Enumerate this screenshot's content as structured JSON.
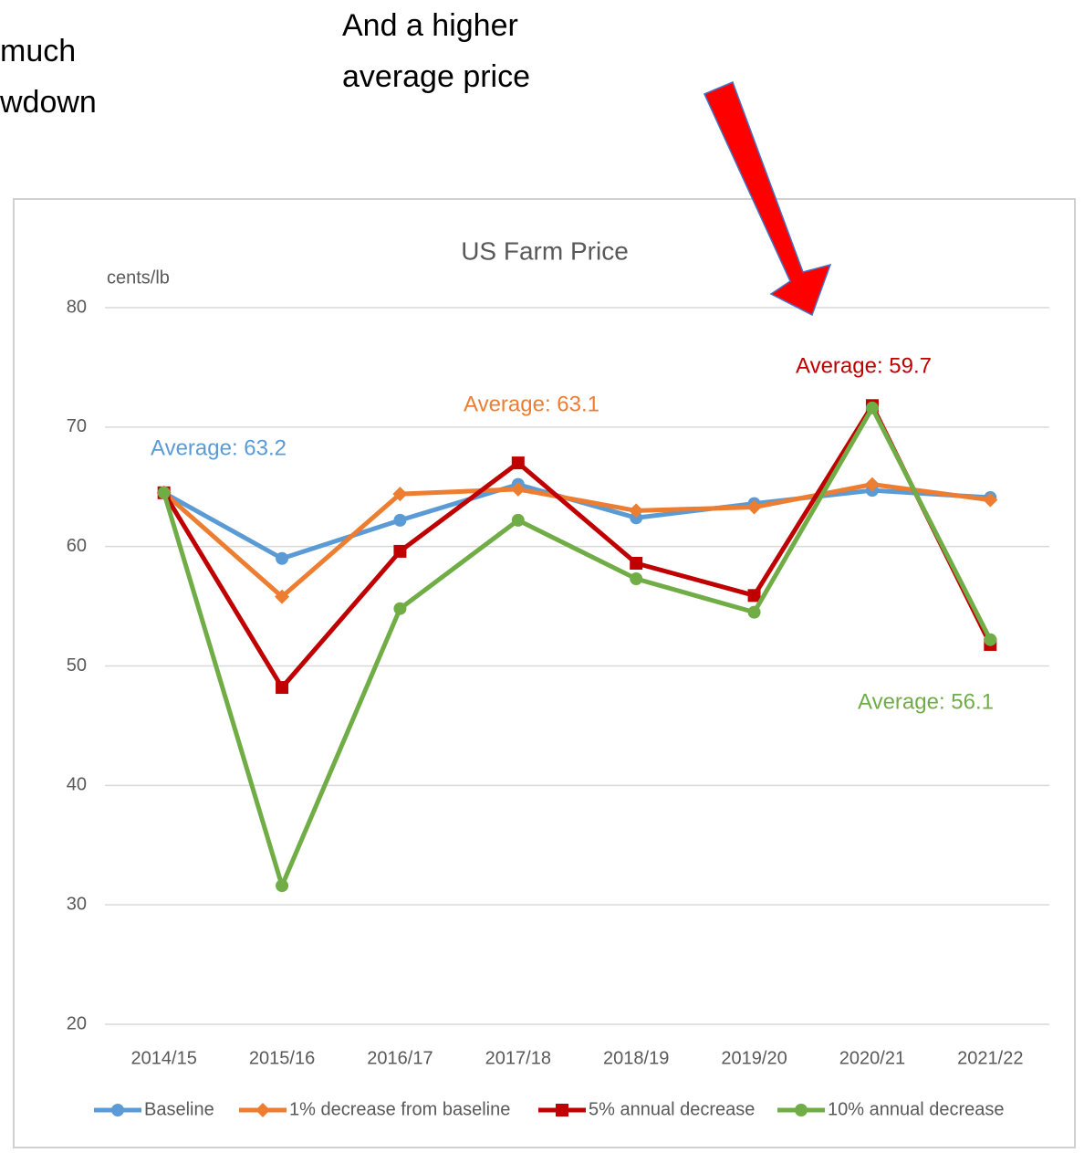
{
  "slide_text": {
    "left_fragments": [
      "much",
      "wdown"
    ],
    "callout_lines": [
      "And a higher",
      "average price"
    ]
  },
  "chart_data": {
    "type": "line",
    "title": "US Farm Price",
    "y_axis_label": "cents/lb",
    "categories": [
      "2014/15",
      "2015/16",
      "2016/17",
      "2017/18",
      "2018/19",
      "2019/20",
      "2020/21",
      "2021/22"
    ],
    "series": [
      {
        "name": "Baseline",
        "color": "#5b9bd5",
        "marker": "circle",
        "values": [
          64.5,
          59.0,
          62.2,
          65.2,
          62.4,
          63.6,
          64.7,
          64.1
        ]
      },
      {
        "name": "1% decrease from baseline",
        "color": "#ed7d31",
        "marker": "diamond",
        "values": [
          64.5,
          55.8,
          64.4,
          64.8,
          63.0,
          63.3,
          65.2,
          63.9
        ]
      },
      {
        "name": "5% annual decrease",
        "color": "#c00000",
        "marker": "square",
        "values": [
          64.5,
          48.2,
          59.6,
          67.0,
          58.6,
          55.9,
          71.8,
          51.8
        ]
      },
      {
        "name": "10% annual decrease",
        "color": "#70ad47",
        "marker": "circle",
        "values": [
          64.5,
          31.6,
          54.8,
          62.2,
          57.3,
          54.5,
          71.6,
          52.2
        ]
      }
    ],
    "annotations": [
      "Average: 63.2",
      "Average: 63.1",
      "Average: 59.7",
      "Average: 56.1"
    ],
    "ylim": [
      20,
      80
    ],
    "yticks": [
      20,
      30,
      40,
      50,
      60,
      70,
      80
    ],
    "grid": true,
    "legend": "bottom"
  }
}
